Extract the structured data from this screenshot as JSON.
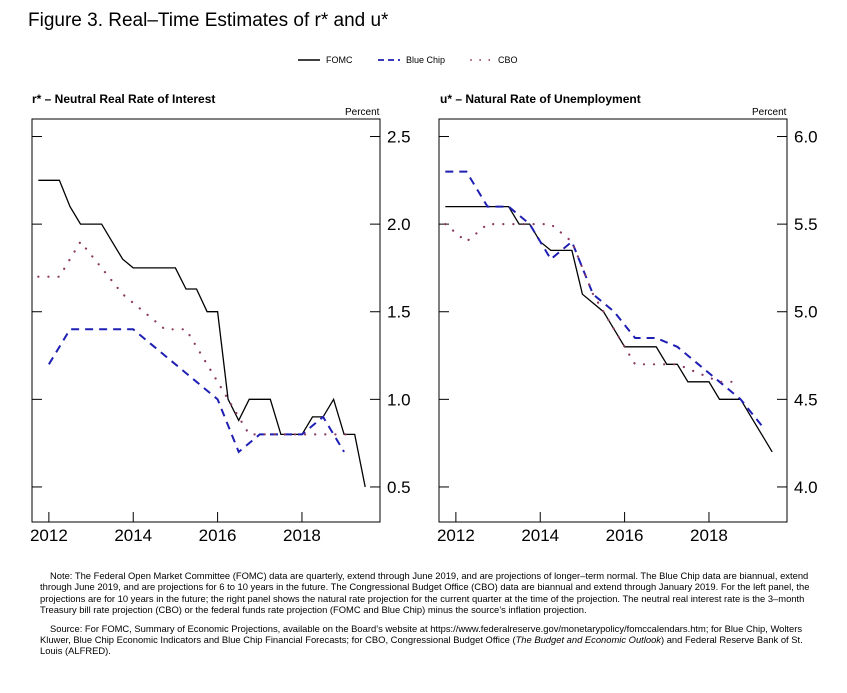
{
  "figure_title": "Figure 3.  Real–Time Estimates of r* and u*",
  "legend": [
    {
      "label": "FOMC",
      "style": "solid",
      "color": "#000000"
    },
    {
      "label": "Blue Chip",
      "style": "dashed",
      "color": "#1f1fb4"
    },
    {
      "label": "CBO",
      "style": "dotted",
      "color": "#8b3a62"
    }
  ],
  "chart_data": [
    {
      "type": "line",
      "title": "r* – Neutral Real Rate of Interest",
      "ylabel": "Percent",
      "xlim": [
        2011.6,
        2019.85
      ],
      "ylim": [
        0.3,
        2.6
      ],
      "xticks": [
        2012,
        2014,
        2016,
        2018
      ],
      "xtick_labels": [
        "2012",
        "2014",
        "2016",
        "2018"
      ],
      "yticks": [
        0.5,
        1.0,
        1.5,
        2.0,
        2.5
      ],
      "ytick_labels": [
        "0.5",
        "1.0",
        "1.5",
        "2.0",
        "2.5"
      ],
      "series": [
        {
          "name": "FOMC",
          "style": "solid",
          "x": [
            2011.75,
            2012.25,
            2012.5,
            2012.75,
            2013.0,
            2013.25,
            2013.5,
            2013.75,
            2014.0,
            2014.25,
            2014.5,
            2014.75,
            2015.0,
            2015.25,
            2015.5,
            2015.75,
            2016.0,
            2016.25,
            2016.5,
            2016.75,
            2017.0,
            2017.25,
            2017.5,
            2017.75,
            2018.0,
            2018.25,
            2018.5,
            2018.75,
            2019.0,
            2019.25,
            2019.5
          ],
          "y": [
            2.25,
            2.25,
            2.1,
            2.0,
            2.0,
            2.0,
            1.9,
            1.8,
            1.75,
            1.75,
            1.75,
            1.75,
            1.75,
            1.63,
            1.63,
            1.5,
            1.5,
            1.0,
            0.88,
            1.0,
            1.0,
            1.0,
            0.8,
            0.8,
            0.8,
            0.9,
            0.9,
            1.0,
            0.8,
            0.8,
            0.5
          ]
        },
        {
          "name": "Blue Chip",
          "style": "dashed",
          "x": [
            2012.0,
            2012.5,
            2013.0,
            2013.5,
            2014.0,
            2014.5,
            2015.0,
            2015.5,
            2016.0,
            2016.5,
            2017.0,
            2017.5,
            2018.0,
            2018.5,
            2019.0
          ],
          "y": [
            1.2,
            1.4,
            1.4,
            1.4,
            1.4,
            1.3,
            1.2,
            1.1,
            1.0,
            0.7,
            0.8,
            0.8,
            0.8,
            0.9,
            0.7
          ]
        },
        {
          "name": "CBO",
          "style": "dotted",
          "x": [
            2011.75,
            2012.25,
            2012.75,
            2013.75,
            2014.25,
            2014.75,
            2015.25,
            2015.75,
            2016.25,
            2016.75,
            2017.25,
            2017.75,
            2018.25,
            2018.75,
            2019.25
          ],
          "y": [
            1.7,
            1.7,
            1.9,
            1.6,
            1.5,
            1.4,
            1.4,
            1.2,
            1.0,
            0.8,
            0.8,
            0.8,
            0.8,
            0.8,
            0.8
          ]
        }
      ]
    },
    {
      "type": "line",
      "title": "u* – Natural Rate of Unemployment",
      "ylabel": "Percent",
      "xlim": [
        2011.6,
        2019.85
      ],
      "ylim": [
        3.8,
        6.1
      ],
      "xticks": [
        2012,
        2014,
        2016,
        2018
      ],
      "xtick_labels": [
        "2012",
        "2014",
        "2016",
        "2018"
      ],
      "yticks": [
        4.0,
        4.5,
        5.0,
        5.5,
        6.0
      ],
      "ytick_labels": [
        "4.0",
        "4.5",
        "5.0",
        "5.5",
        "6.0"
      ],
      "series": [
        {
          "name": "FOMC",
          "style": "solid",
          "x": [
            2011.75,
            2012.0,
            2012.25,
            2012.5,
            2012.75,
            2013.0,
            2013.25,
            2013.5,
            2013.75,
            2014.0,
            2014.25,
            2014.5,
            2014.75,
            2015.0,
            2015.25,
            2015.5,
            2015.75,
            2016.0,
            2016.25,
            2016.5,
            2016.75,
            2017.0,
            2017.25,
            2017.5,
            2017.75,
            2018.0,
            2018.25,
            2018.5,
            2018.75,
            2019.0,
            2019.25,
            2019.5
          ],
          "y": [
            5.6,
            5.6,
            5.6,
            5.6,
            5.6,
            5.6,
            5.6,
            5.5,
            5.5,
            5.4,
            5.35,
            5.35,
            5.35,
            5.1,
            5.05,
            5.0,
            4.9,
            4.8,
            4.8,
            4.8,
            4.8,
            4.7,
            4.7,
            4.6,
            4.6,
            4.6,
            4.5,
            4.5,
            4.5,
            4.4,
            4.3,
            4.2
          ]
        },
        {
          "name": "Blue Chip",
          "style": "dashed",
          "x": [
            2011.75,
            2012.25,
            2012.75,
            2013.25,
            2013.75,
            2014.25,
            2014.75,
            2015.25,
            2015.75,
            2016.25,
            2016.75,
            2017.25,
            2017.75,
            2018.25,
            2018.75,
            2019.25
          ],
          "y": [
            5.8,
            5.8,
            5.6,
            5.6,
            5.5,
            5.3,
            5.4,
            5.1,
            5.0,
            4.85,
            4.85,
            4.8,
            4.7,
            4.6,
            4.5,
            4.35
          ]
        },
        {
          "name": "CBO",
          "style": "dotted",
          "x": [
            2011.75,
            2012.25,
            2012.75,
            2013.25,
            2013.75,
            2014.25,
            2014.75,
            2015.25,
            2015.75,
            2016.25,
            2016.75,
            2017.25,
            2017.75,
            2018.25,
            2018.75
          ],
          "y": [
            5.5,
            5.4,
            5.5,
            5.5,
            5.5,
            5.5,
            5.4,
            5.1,
            4.9,
            4.7,
            4.7,
            4.7,
            4.65,
            4.6,
            4.6
          ]
        }
      ]
    }
  ],
  "notes": {
    "note_label": "Note:",
    "note_text": "The Federal Open Market Committee (FOMC) data are quarterly, extend through June 2019, and are projections of longer–term normal. The Blue Chip data are biannual, extend through June 2019, and are projections for 6 to 10 years in the future.  The Congressional Budget Office (CBO) data are biannual and extend through January 2019. For the left panel, the projections are for 10 years in the future; the right panel shows the natural rate projection for the current quarter at the time of the projection.  The neutral real interest rate is the 3–month Treasury bill rate projection (CBO) or the federal funds rate projection (FOMC and Blue Chip) minus the source’s inflation projection.",
    "source_label": "Source:",
    "source_text_1": "For FOMC, Summary of Economic Projections, available on the Board’s website at https://www.federalreserve.gov/monetarypolicy/fomccalendars.htm; for Blue Chip, Wolters Kluwer, Blue Chip Economic Indicators and Blue Chip Financial Forecasts; for CBO, Congressional Budget Office (",
    "source_italic_1": "The Budget and Economic Outlook",
    "source_text_2": ") and Federal Reserve Bank of St. Louis (ALFRED)."
  }
}
